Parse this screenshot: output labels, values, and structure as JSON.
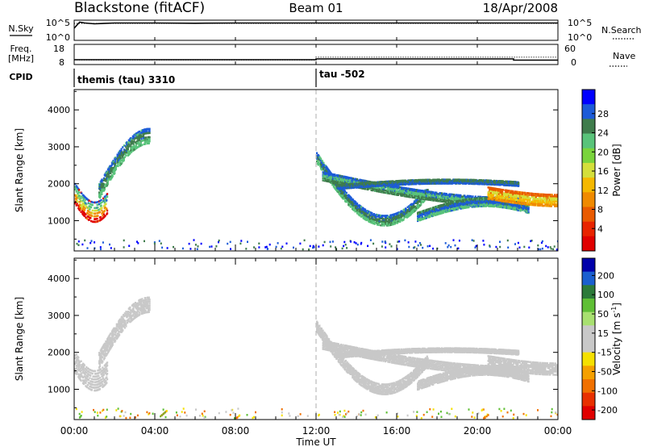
{
  "header": {
    "station": "Blackstone (fitACF)",
    "beam": "Beam 01",
    "date": "18/Apr/2008"
  },
  "chart_data": [
    {
      "type": "line",
      "name": "noise-panel",
      "left_label": "N.Sky",
      "right_label": "N.Search",
      "y_ticks_left": [
        "10^5",
        "10^0"
      ],
      "y_ticks_right": [
        "10^5",
        "10^0"
      ],
      "series": [
        {
          "name": "N.Sky",
          "style": "solid",
          "x": [
            "00:00",
            "00:16",
            "00:32",
            "01:00",
            "02:00",
            "04:00",
            "06:00",
            "08:00",
            "10:00",
            "12:00",
            "14:00",
            "16:00",
            "18:00",
            "20:00",
            "22:00",
            "24:00"
          ],
          "values": [
            0.6,
            0.9,
            0.86,
            0.82,
            0.86,
            0.86,
            0.85,
            0.86,
            0.86,
            0.86,
            0.86,
            0.86,
            0.86,
            0.86,
            0.86,
            0.86
          ]
        },
        {
          "name": "N.Search",
          "style": "dotted",
          "x": [
            "00:00",
            "24:00"
          ],
          "values": [
            0.85,
            0.85
          ]
        }
      ]
    },
    {
      "type": "line",
      "name": "frequency-panel",
      "left_label": "Freq. [MHz]",
      "right_label": "Nave",
      "y_ticks_left": [
        "18",
        "8"
      ],
      "y_ticks_right": [
        "60",
        "0"
      ],
      "series": [
        {
          "name": "Freq",
          "style": "solid",
          "x": [
            "00:00",
            "12:00",
            "12:00",
            "21:48",
            "21:48",
            "24:00"
          ],
          "values": [
            10.4,
            10.4,
            10.8,
            10.8,
            10.2,
            10.2
          ]
        },
        {
          "name": "Nave",
          "style": "dotted",
          "x": [
            "00:00",
            "12:00",
            "12:00",
            "24:00"
          ],
          "values": [
            14,
            14,
            22,
            22
          ]
        }
      ]
    },
    {
      "type": "table",
      "name": "cpid-panel",
      "label": "CPID",
      "segments": [
        {
          "start": "00:00",
          "label": "themis (tau) 3310"
        },
        {
          "start": "12:00",
          "label": "tau -502"
        }
      ]
    },
    {
      "type": "heatmap",
      "name": "power-panel",
      "ylabel": "Slant Range [km]",
      "yticks": [
        1000,
        2000,
        3000,
        4000
      ],
      "ylim": [
        180,
        4550
      ],
      "xlim": [
        0,
        24
      ],
      "colorbar": {
        "label": "Power [dB]",
        "ticks": [
          "4",
          "8",
          "12",
          "16",
          "20",
          "24",
          "28"
        ],
        "colors": [
          "#0000ff",
          "#1c5bd8",
          "#3f7c4c",
          "#59c37a",
          "#7ad43c",
          "#d4df3b",
          "#f5b800",
          "#f08a00",
          "#e95a00",
          "#e82400",
          "#e00000"
        ]
      },
      "echo_bands": [
        {
          "t0": 0.0,
          "t1": 1.6,
          "r0": 1750,
          "r1": 1250,
          "w": 600,
          "c": [
            "#e00000",
            "#f08a00",
            "#d4df3b",
            "#59c37a",
            "#1c5bd8"
          ]
        },
        {
          "t0": 1.2,
          "t1": 3.7,
          "r0": 1800,
          "r1": 3300,
          "w": 450,
          "c": [
            "#59c37a",
            "#3f7c4c",
            "#1c5bd8"
          ]
        },
        {
          "t0": 12.0,
          "t1": 17.5,
          "r0": 2700,
          "r1": 1000,
          "w": 300,
          "c": [
            "#59c37a",
            "#3f7c4c",
            "#1c5bd8"
          ]
        },
        {
          "t0": 12.3,
          "t1": 22.0,
          "r0": 2200,
          "r1": 1500,
          "w": 250,
          "c": [
            "#3f7c4c",
            "#59c37a",
            "#1c5bd8"
          ]
        },
        {
          "t0": 17.0,
          "t1": 22.5,
          "r0": 1100,
          "r1": 1500,
          "w": 250,
          "c": [
            "#59c37a",
            "#1c5bd8",
            "#3f7c4c"
          ]
        },
        {
          "t0": 20.5,
          "t1": 24.0,
          "r0": 1750,
          "r1": 1550,
          "w": 350,
          "c": [
            "#f08a00",
            "#f5b800",
            "#d4df3b",
            "#e95a00"
          ]
        },
        {
          "t0": 13.0,
          "t1": 22.0,
          "r0": 1900,
          "r1": 2050,
          "w": 120,
          "c": [
            "#1c5bd8",
            "#3f7c4c"
          ]
        }
      ]
    },
    {
      "type": "heatmap",
      "name": "velocity-panel",
      "ylabel": "Slant Range [km]",
      "yticks": [
        1000,
        2000,
        3000,
        4000
      ],
      "ylim": [
        180,
        4550
      ],
      "xlim": [
        0,
        24
      ],
      "colorbar": {
        "label": "Velocity [m s^-1]",
        "ticks": [
          "200",
          "100",
          "50",
          "15",
          "-15",
          "-50",
          "-100",
          "-200"
        ],
        "colors": [
          "#0000aa",
          "#1a5fd0",
          "#2c7a3a",
          "#5fbf35",
          "#a8e070",
          "#c8c8c8",
          "#c8c8c8",
          "#f5e000",
          "#f5a000",
          "#f07000",
          "#e83000",
          "#e00000"
        ]
      },
      "echo_bands": [
        {
          "t0": 0.0,
          "t1": 1.6,
          "r0": 1750,
          "r1": 1250,
          "w": 600,
          "c": [
            "#c8c8c8"
          ]
        },
        {
          "t0": 1.2,
          "t1": 3.7,
          "r0": 1800,
          "r1": 3300,
          "w": 450,
          "c": [
            "#c8c8c8"
          ]
        },
        {
          "t0": 12.0,
          "t1": 17.5,
          "r0": 2700,
          "r1": 1000,
          "w": 300,
          "c": [
            "#c8c8c8"
          ]
        },
        {
          "t0": 12.3,
          "t1": 22.0,
          "r0": 2200,
          "r1": 1500,
          "w": 250,
          "c": [
            "#c8c8c8"
          ]
        },
        {
          "t0": 17.0,
          "t1": 22.5,
          "r0": 1100,
          "r1": 1500,
          "w": 250,
          "c": [
            "#c8c8c8"
          ]
        },
        {
          "t0": 20.5,
          "t1": 24.0,
          "r0": 1750,
          "r1": 1550,
          "w": 350,
          "c": [
            "#c8c8c8"
          ]
        },
        {
          "t0": 13.0,
          "t1": 22.0,
          "r0": 1900,
          "r1": 2050,
          "w": 120,
          "c": [
            "#c8c8c8"
          ]
        }
      ]
    }
  ],
  "xaxis": {
    "label": "Time UT",
    "ticks": [
      "00:00",
      "04:00",
      "08:00",
      "12:00",
      "16:00",
      "20:00",
      "00:00"
    ],
    "marker_time": 12.0
  }
}
